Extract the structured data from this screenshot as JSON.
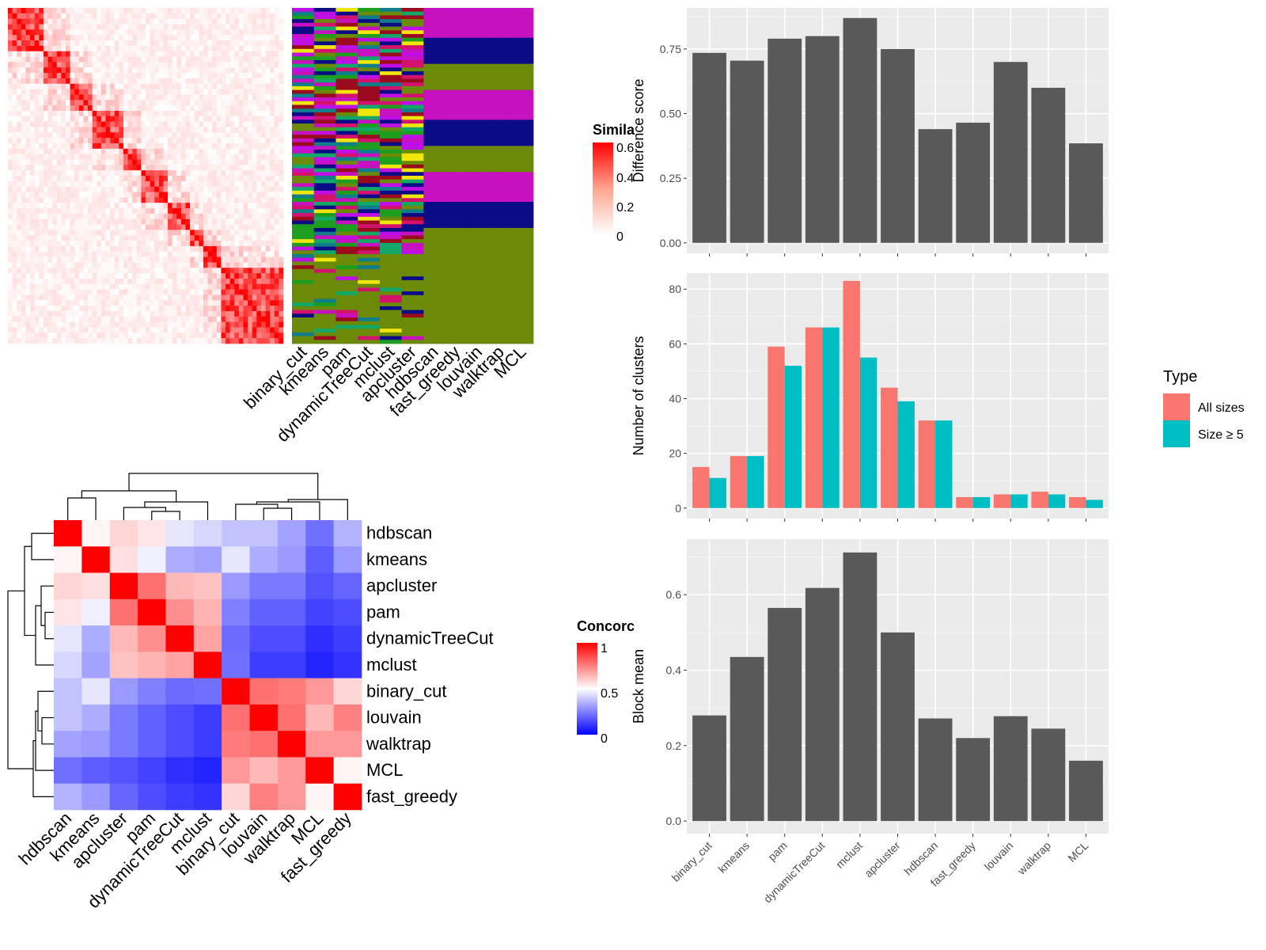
{
  "similarity_legend": {
    "title": "Simila",
    "ticks": [
      "0.6",
      "0.4",
      "0.2",
      "0"
    ]
  },
  "concordance_legend": {
    "title": "Concorc",
    "ticks": [
      "1",
      "0.5",
      "0"
    ]
  },
  "colors": {
    "panel_bg": "#ebebeb",
    "bar": "#595959",
    "all_sizes": "#f8766d",
    "size_ge5": "#00bfc4",
    "heat_high": "#ff0000",
    "heat_mid": "#ffffff",
    "heat_low": "#0000ff"
  },
  "class_colors": [
    "#c711c1",
    "#0b0b85",
    "#6b8a08",
    "#f0e60c",
    "#12a868",
    "#0f7e8a",
    "#9a0b1e",
    "#d3126e",
    "#1e9e1e",
    "#c00ee6"
  ],
  "chart_data": [
    {
      "type": "heatmap",
      "name": "similarity-matrix",
      "legend_title": "Simila",
      "legend_ticks": [
        0,
        0.2,
        0.4,
        0.6
      ],
      "block_sizes": [
        8,
        6,
        5,
        7,
        4,
        6,
        5,
        3,
        4,
        14
      ],
      "top_columns": [
        "binary_cut",
        "kmeans",
        "pam",
        "dynamicTreeCut",
        "mclust",
        "apcluster",
        "hdbscan",
        "fast_greedy",
        "louvain",
        "walktrap",
        "MCL"
      ]
    },
    {
      "type": "heatmap",
      "name": "concordance-matrix",
      "legend_title": "Concorc",
      "legend_ticks": [
        0,
        0.5,
        1
      ],
      "rows": [
        "hdbscan",
        "kmeans",
        "apcluster",
        "pam",
        "dynamicTreeCut",
        "mclust",
        "binary_cut",
        "louvain",
        "walktrap",
        "MCL",
        "fast_greedy"
      ],
      "columns": [
        "hdbscan",
        "kmeans",
        "apcluster",
        "pam",
        "dynamicTreeCut",
        "mclust",
        "binary_cut",
        "louvain",
        "walktrap",
        "MCL",
        "fast_greedy"
      ],
      "values": [
        [
          1.0,
          0.52,
          0.58,
          0.55,
          0.45,
          0.42,
          0.38,
          0.38,
          0.32,
          0.22,
          0.35
        ],
        [
          0.52,
          1.0,
          0.56,
          0.47,
          0.34,
          0.32,
          0.45,
          0.34,
          0.3,
          0.18,
          0.3
        ],
        [
          0.58,
          0.56,
          1.0,
          0.78,
          0.64,
          0.62,
          0.3,
          0.24,
          0.24,
          0.16,
          0.2
        ],
        [
          0.55,
          0.47,
          0.78,
          1.0,
          0.72,
          0.65,
          0.25,
          0.19,
          0.19,
          0.13,
          0.15
        ],
        [
          0.45,
          0.34,
          0.64,
          0.72,
          1.0,
          0.68,
          0.21,
          0.15,
          0.15,
          0.09,
          0.12
        ],
        [
          0.42,
          0.32,
          0.62,
          0.65,
          0.68,
          1.0,
          0.22,
          0.12,
          0.12,
          0.07,
          0.1
        ],
        [
          0.38,
          0.45,
          0.3,
          0.25,
          0.21,
          0.22,
          1.0,
          0.78,
          0.76,
          0.7,
          0.58
        ],
        [
          0.38,
          0.34,
          0.24,
          0.19,
          0.15,
          0.12,
          0.78,
          1.0,
          0.78,
          0.64,
          0.75
        ],
        [
          0.32,
          0.3,
          0.24,
          0.19,
          0.15,
          0.12,
          0.76,
          0.78,
          1.0,
          0.7,
          0.7
        ],
        [
          0.22,
          0.18,
          0.16,
          0.13,
          0.09,
          0.07,
          0.7,
          0.64,
          0.7,
          1.0,
          0.52
        ],
        [
          0.35,
          0.3,
          0.2,
          0.15,
          0.12,
          0.1,
          0.58,
          0.75,
          0.7,
          0.52,
          1.0
        ]
      ]
    },
    {
      "type": "bar",
      "name": "difference-score",
      "categories": [
        "binary_cut",
        "kmeans",
        "pam",
        "dynamicTreeCut",
        "mclust",
        "apcluster",
        "hdbscan",
        "fast_greedy",
        "louvain",
        "walktrap",
        "MCL"
      ],
      "values": [
        0.735,
        0.705,
        0.79,
        0.8,
        0.87,
        0.75,
        0.44,
        0.465,
        0.7,
        0.6,
        0.385
      ],
      "ylabel": "Difference score",
      "ylim": [
        0,
        0.9
      ],
      "yticks": [
        "0.00",
        "0.25",
        "0.50",
        "0.75"
      ]
    },
    {
      "type": "bar",
      "name": "number-of-clusters",
      "categories": [
        "binary_cut",
        "kmeans",
        "pam",
        "dynamicTreeCut",
        "mclust",
        "apcluster",
        "hdbscan",
        "fast_greedy",
        "louvain",
        "walktrap",
        "MCL"
      ],
      "series": [
        {
          "name": "All sizes",
          "values": [
            15,
            19,
            59,
            66,
            83,
            44,
            32,
            4,
            5,
            6,
            4
          ]
        },
        {
          "name": "Size ≥ 5",
          "values": [
            11,
            19,
            52,
            66,
            55,
            39,
            32,
            4,
            5,
            5,
            3
          ]
        }
      ],
      "ylabel": "Number of clusters",
      "ylim": [
        0,
        85
      ],
      "yticks": [
        "0",
        "20",
        "40",
        "60",
        "80"
      ],
      "legend_title": "Type",
      "legend_position": "right"
    },
    {
      "type": "bar",
      "name": "block-mean",
      "categories": [
        "binary_cut",
        "kmeans",
        "pam",
        "dynamicTreeCut",
        "mclust",
        "apcluster",
        "hdbscan",
        "fast_greedy",
        "louvain",
        "walktrap",
        "MCL"
      ],
      "values": [
        0.28,
        0.435,
        0.565,
        0.618,
        0.712,
        0.5,
        0.272,
        0.22,
        0.278,
        0.245,
        0.16
      ],
      "ylabel": "Block mean",
      "ylim": [
        0,
        0.74
      ],
      "yticks": [
        "0.0",
        "0.2",
        "0.4",
        "0.6"
      ]
    }
  ]
}
